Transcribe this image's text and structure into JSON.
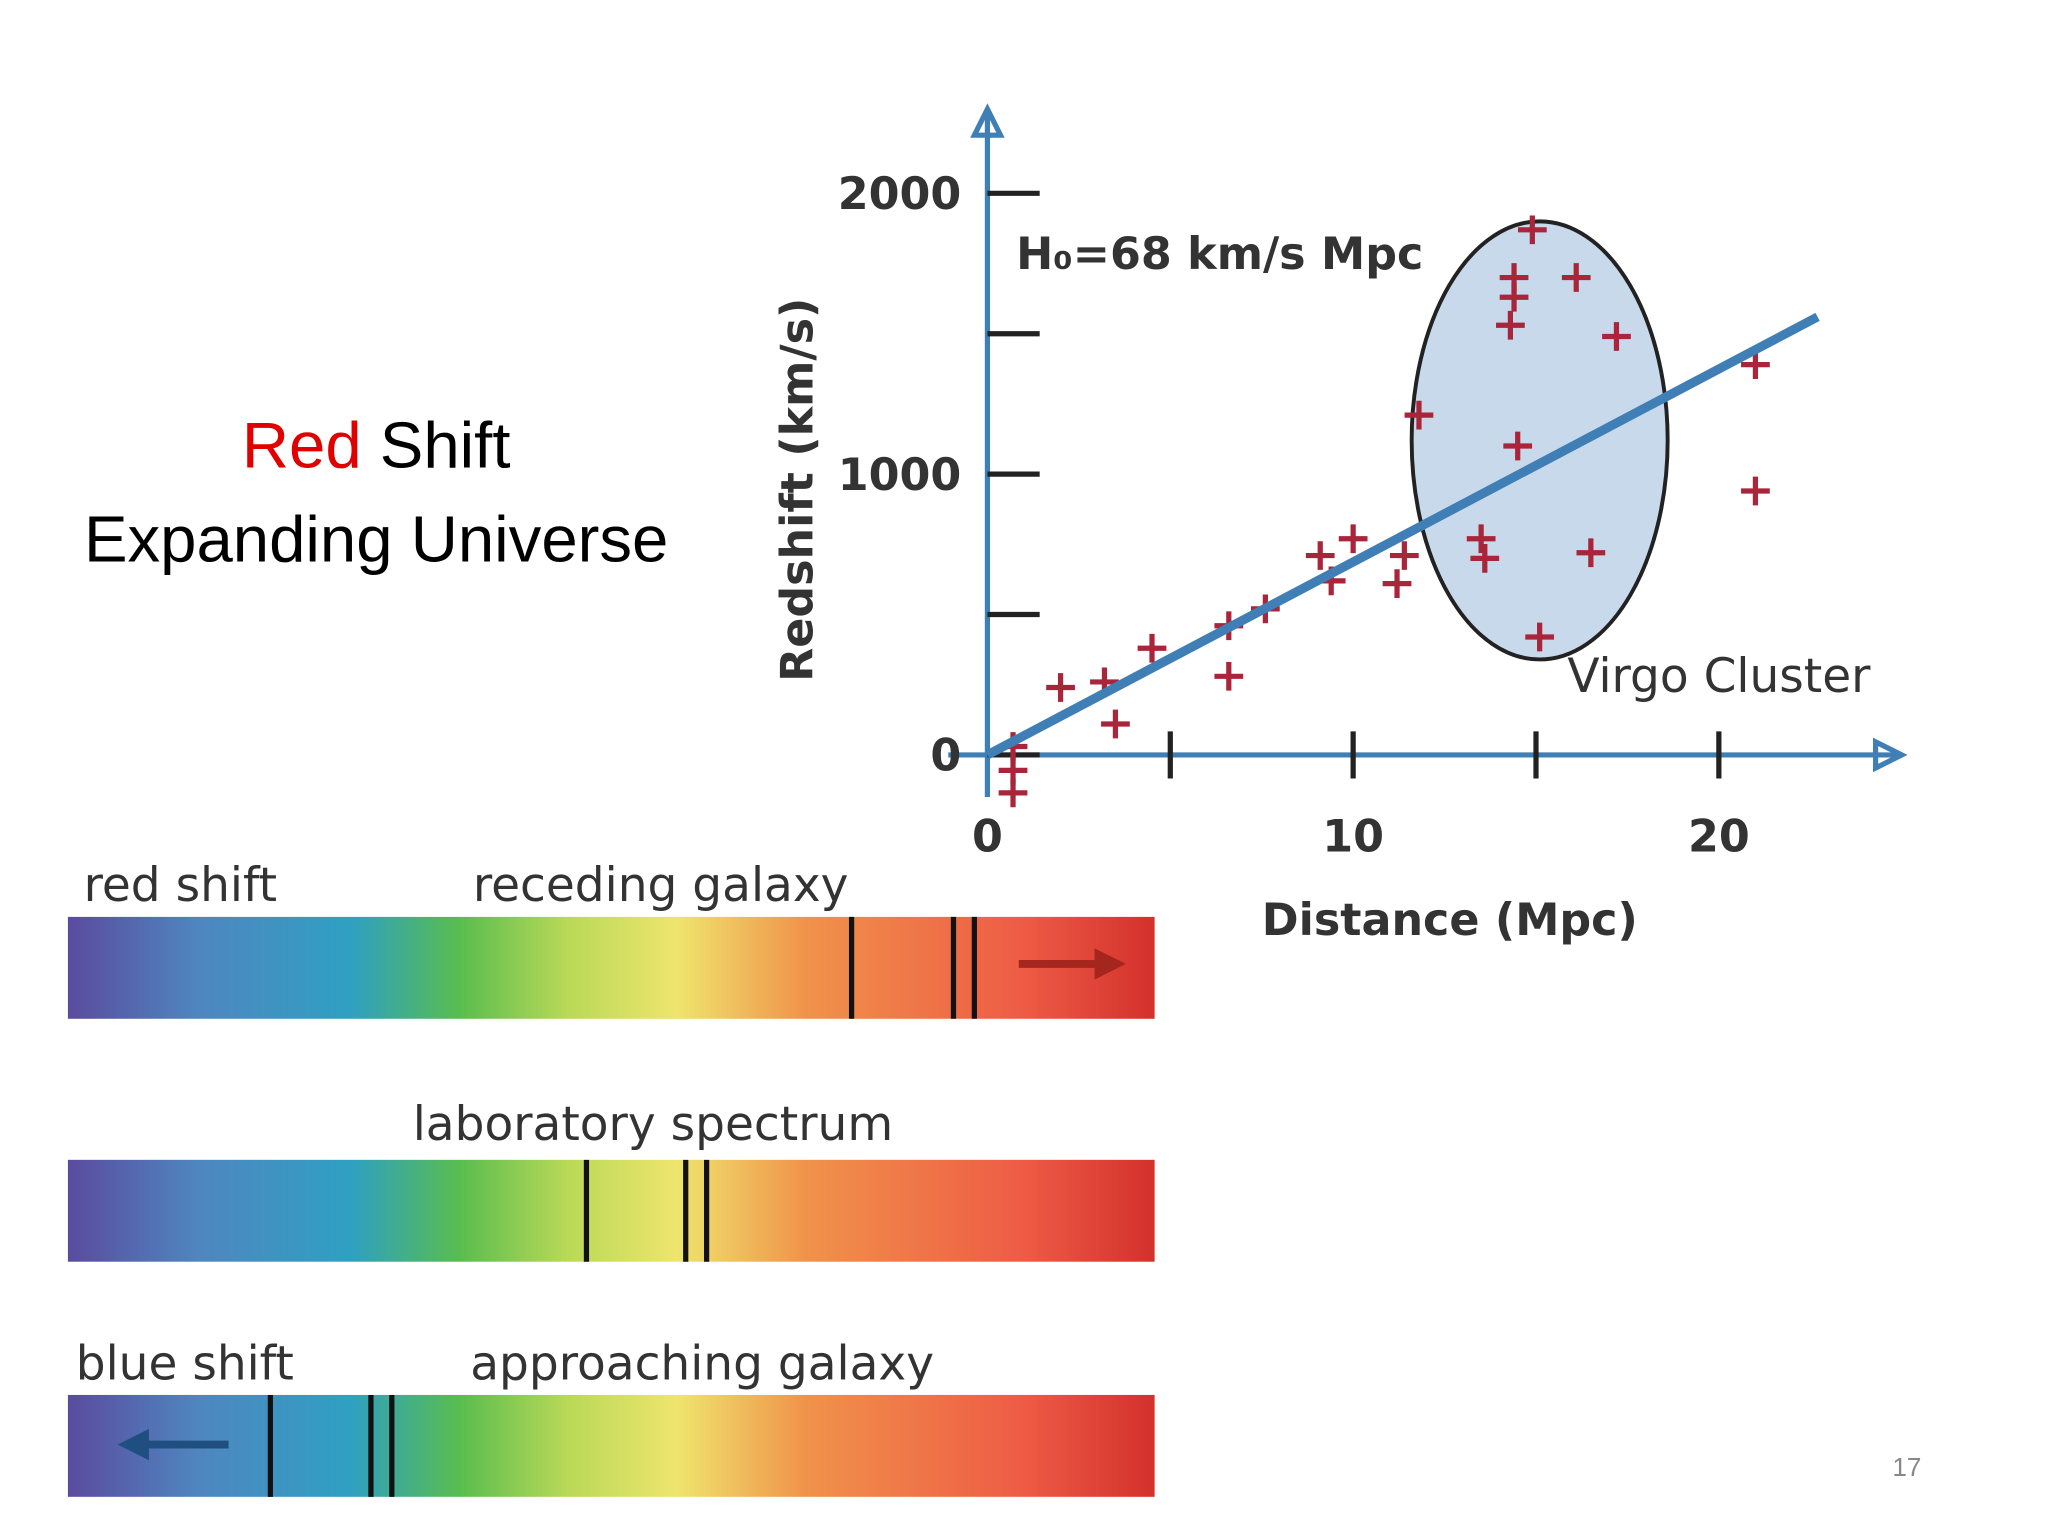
{
  "slide": {
    "title_red": "Red",
    "title_rest": "Shift",
    "subtitle": "Expanding Universe",
    "page_number": "17"
  },
  "chart_data": {
    "type": "scatter",
    "x_label": "Distance (Mpc)",
    "y_label": "Redshift (km/s)",
    "annotation": "H₀=68 km/s Mpc",
    "xlim": [
      0,
      25
    ],
    "ylim": [
      -150,
      2300
    ],
    "xticks": [
      0,
      {
        "value": 5,
        "label": null
      },
      10,
      {
        "value": 15,
        "label": null
      },
      20
    ],
    "yticks": [
      0,
      {
        "value": 500,
        "label": null
      },
      1000,
      {
        "value": 1500,
        "label": null
      },
      2000
    ],
    "series": [
      {
        "name": null,
        "color": "#a8253a",
        "x": [
          0.7,
          0.7,
          0.7,
          2.0,
          3.2,
          3.5,
          4.5,
          6.6,
          6.6,
          7.6,
          9.1,
          9.4,
          10.0,
          11.2,
          11.4,
          11.8,
          13.5,
          13.6,
          14.5,
          14.3,
          14.4,
          14.4,
          14.9,
          16.1,
          17.2,
          16.5,
          15.1,
          21.0,
          21.0
        ],
        "values": [
          30,
          -55,
          -135,
          240,
          260,
          110,
          380,
          280,
          460,
          520,
          710,
          620,
          770,
          610,
          710,
          1210,
          770,
          700,
          1100,
          1530,
          1630,
          1700,
          1870,
          1700,
          1490,
          720,
          420,
          1390,
          940
        ]
      }
    ],
    "fit_line": {
      "color": "#3f7fb5",
      "x": [
        0,
        22.7
      ],
      "values": [
        0,
        1560
      ]
    },
    "region": {
      "label": "Virgo Cluster",
      "cx": 15.1,
      "cy": 1120,
      "rx": 3.5,
      "ry": 780,
      "color": "#c9d9ec"
    }
  },
  "spectra": [
    {
      "left": "red shift",
      "right": "receding galaxy"
    },
    {
      "left": null,
      "right": "laboratory spectrum"
    },
    {
      "left": "blue shift",
      "right": "approaching galaxy"
    }
  ]
}
